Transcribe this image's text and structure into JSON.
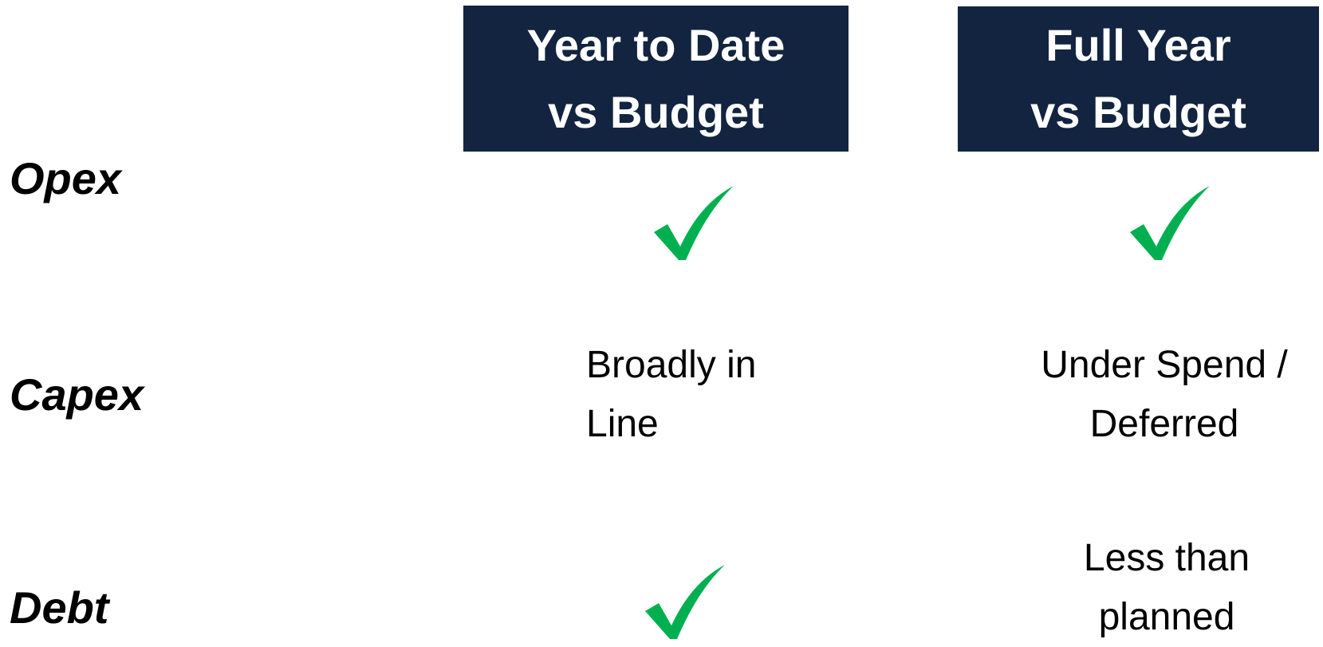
{
  "header": {
    "columns": [
      [
        "Year to Date",
        "vs Budget"
      ],
      [
        "Full Year",
        "vs Budget"
      ]
    ]
  },
  "rows": [
    {
      "label": "Opex"
    },
    {
      "label": "Capex",
      "ytd": [
        "Broadly in",
        "Line"
      ],
      "full_year": [
        "Under Spend /",
        "Deferred"
      ]
    },
    {
      "label": "Debt",
      "full_year": [
        "Less than",
        "planned"
      ]
    }
  ]
}
